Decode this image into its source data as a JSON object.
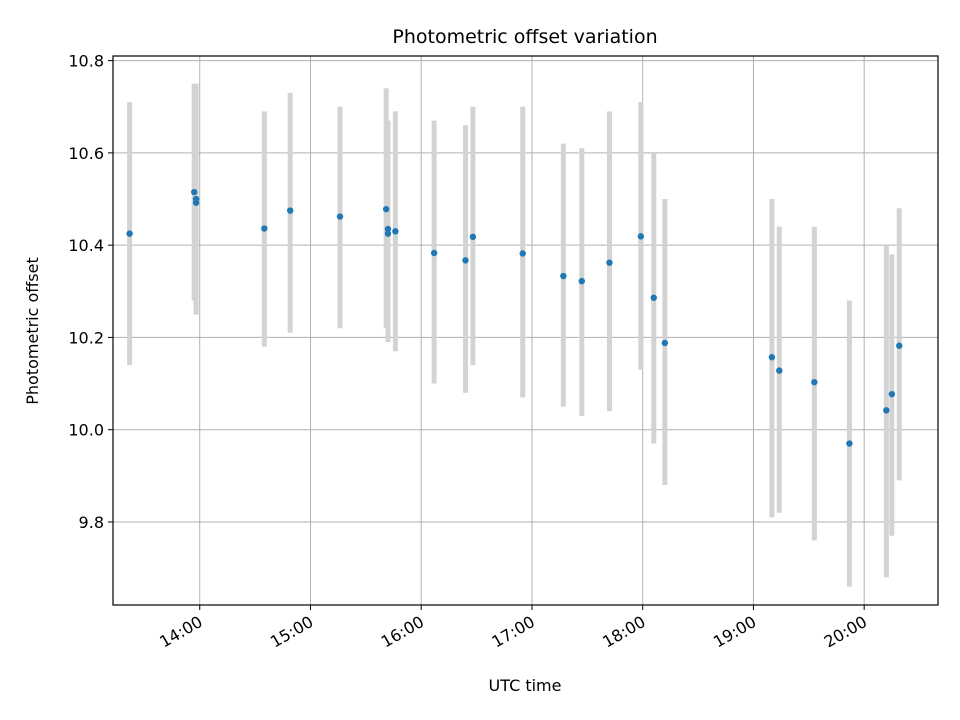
{
  "chart_data": {
    "type": "scatter",
    "title": "Photometric offset variation",
    "xlabel": "UTC time",
    "ylabel": "Photometric offset",
    "x_ticks": [
      "14:00",
      "15:00",
      "16:00",
      "17:00",
      "18:00",
      "19:00",
      "20:00"
    ],
    "y_ticks": [
      "9.8",
      "10.0",
      "10.2",
      "10.4",
      "10.6",
      "10.8"
    ],
    "xlim": [
      "13:13",
      "20:40"
    ],
    "ylim": [
      9.62,
      10.81
    ],
    "grid": true,
    "colors": {
      "point": "#1f77b4",
      "errorbar": "#d3d3d3",
      "grid": "#b0b0b0"
    },
    "points": [
      {
        "t": "13:22",
        "y": 10.425,
        "lo": 10.14,
        "hi": 10.71
      },
      {
        "t": "13:57",
        "y": 10.515,
        "lo": 10.28,
        "hi": 10.75
      },
      {
        "t": "13:58",
        "y": 10.5,
        "lo": 10.25,
        "hi": 10.75
      },
      {
        "t": "13:58",
        "y": 10.492,
        "lo": 10.25,
        "hi": 10.73
      },
      {
        "t": "14:35",
        "y": 10.436,
        "lo": 10.18,
        "hi": 10.69
      },
      {
        "t": "14:49",
        "y": 10.475,
        "lo": 10.21,
        "hi": 10.73
      },
      {
        "t": "15:16",
        "y": 10.462,
        "lo": 10.22,
        "hi": 10.7
      },
      {
        "t": "15:41",
        "y": 10.478,
        "lo": 10.22,
        "hi": 10.74
      },
      {
        "t": "15:42",
        "y": 10.435,
        "lo": 10.19,
        "hi": 10.66
      },
      {
        "t": "15:42",
        "y": 10.425,
        "lo": 10.19,
        "hi": 10.67
      },
      {
        "t": "15:46",
        "y": 10.43,
        "lo": 10.17,
        "hi": 10.69
      },
      {
        "t": "16:07",
        "y": 10.383,
        "lo": 10.1,
        "hi": 10.67
      },
      {
        "t": "16:24",
        "y": 10.367,
        "lo": 10.08,
        "hi": 10.66
      },
      {
        "t": "16:28",
        "y": 10.418,
        "lo": 10.14,
        "hi": 10.7
      },
      {
        "t": "16:55",
        "y": 10.382,
        "lo": 10.07,
        "hi": 10.7
      },
      {
        "t": "17:17",
        "y": 10.333,
        "lo": 10.05,
        "hi": 10.62
      },
      {
        "t": "17:27",
        "y": 10.322,
        "lo": 10.03,
        "hi": 10.61
      },
      {
        "t": "17:42",
        "y": 10.362,
        "lo": 10.04,
        "hi": 10.69
      },
      {
        "t": "17:59",
        "y": 10.419,
        "lo": 10.13,
        "hi": 10.71
      },
      {
        "t": "18:06",
        "y": 10.286,
        "lo": 9.97,
        "hi": 10.6
      },
      {
        "t": "18:12",
        "y": 10.188,
        "lo": 9.88,
        "hi": 10.5
      },
      {
        "t": "19:10",
        "y": 10.157,
        "lo": 9.81,
        "hi": 10.5
      },
      {
        "t": "19:14",
        "y": 10.128,
        "lo": 9.82,
        "hi": 10.44
      },
      {
        "t": "19:33",
        "y": 10.103,
        "lo": 9.76,
        "hi": 10.44
      },
      {
        "t": "19:52",
        "y": 9.97,
        "lo": 9.66,
        "hi": 10.28
      },
      {
        "t": "20:12",
        "y": 10.042,
        "lo": 9.68,
        "hi": 10.4
      },
      {
        "t": "20:15",
        "y": 10.077,
        "lo": 9.77,
        "hi": 10.38
      },
      {
        "t": "20:19",
        "y": 10.182,
        "lo": 9.89,
        "hi": 10.48
      }
    ]
  }
}
